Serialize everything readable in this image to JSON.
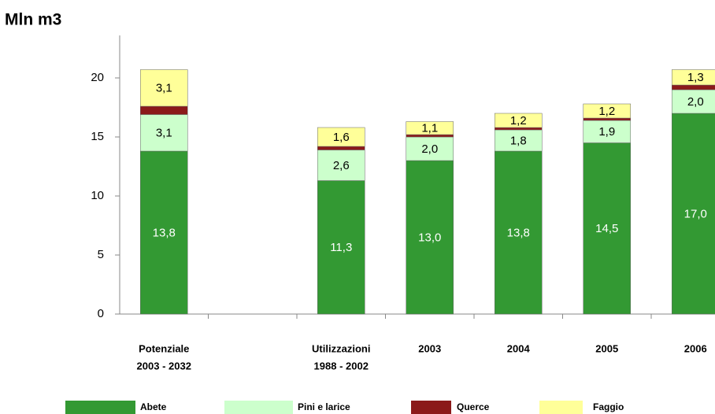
{
  "chart_data": {
    "type": "stacked_bar",
    "title": "Mln m3",
    "categories": [
      [
        "Potenziale",
        "2003 - 2032"
      ],
      null,
      [
        "Utilizzazioni",
        "1988 - 2002"
      ],
      "2003",
      "2004",
      "2005",
      "2006"
    ],
    "series": [
      {
        "name": "Abete",
        "color": "#339933",
        "values": [
          13.8,
          null,
          11.3,
          13.0,
          13.8,
          14.5,
          17.0
        ],
        "value_labels": [
          "13,8",
          null,
          "11,3",
          "13,0",
          "13,8",
          "14,5",
          "17,0"
        ]
      },
      {
        "name": "Pini e larice",
        "color": "#ccffcc",
        "values": [
          3.1,
          null,
          2.6,
          2.0,
          1.8,
          1.9,
          2.0
        ],
        "value_labels": [
          "3,1",
          null,
          "2,6",
          "2,0",
          "1,8",
          "1,9",
          "2,0"
        ]
      },
      {
        "name": "Querce",
        "color": "#8b1a1a",
        "values": [
          0.7,
          null,
          0.3,
          0.2,
          0.2,
          0.2,
          0.4
        ]
      },
      {
        "name": "Faggio",
        "color": "#ffff99",
        "values": [
          3.1,
          null,
          1.6,
          1.1,
          1.2,
          1.2,
          1.3
        ],
        "value_labels": [
          "3,1",
          null,
          "1,6",
          "1,1",
          "1,2",
          "1,2",
          "1,3"
        ]
      }
    ],
    "ylim": [
      0,
      23.6
    ],
    "yticks": [
      0,
      5,
      10,
      15,
      20
    ]
  }
}
